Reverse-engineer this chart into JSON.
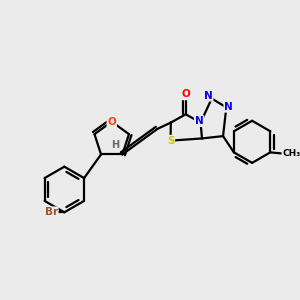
{
  "background_color": "#ebebeb",
  "bond_color": "#000000",
  "atom_colors": {
    "O_carbonyl": "#ff0000",
    "O_furan": "#ff4500",
    "N": "#0000ee",
    "S": "#cccc00",
    "Br": "#a0522d",
    "H": "#666666",
    "C": "#000000"
  },
  "figsize": [
    3.0,
    3.0
  ],
  "dpi": 100,
  "xlim": [
    0,
    10
  ],
  "ylim": [
    0,
    10
  ]
}
